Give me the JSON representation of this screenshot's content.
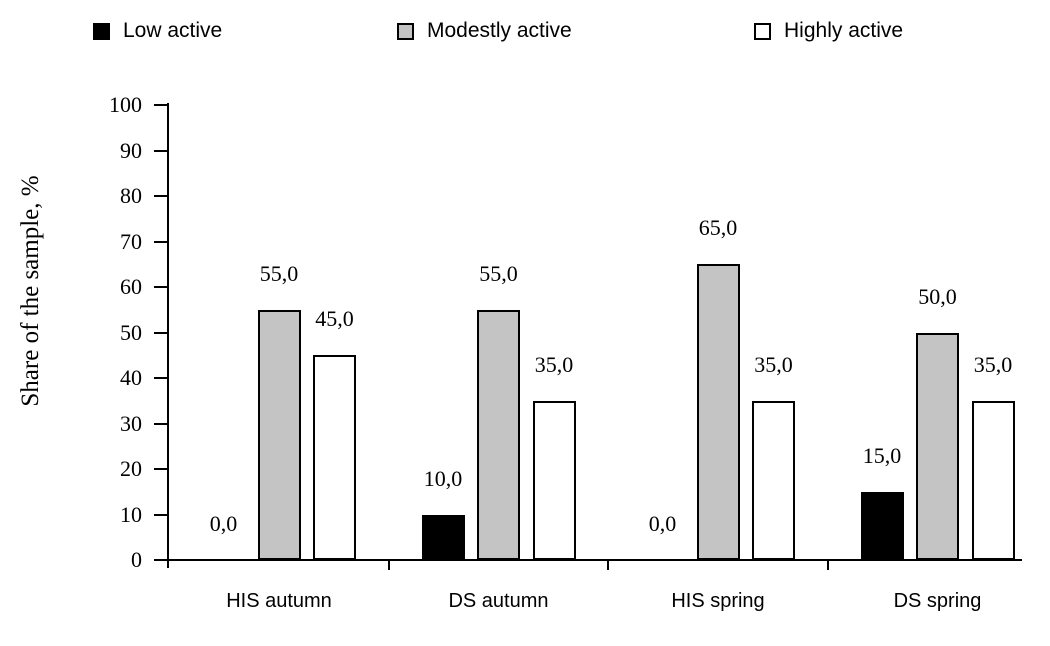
{
  "chart_data": {
    "type": "bar",
    "title": "",
    "xlabel": "",
    "ylabel": "Share of the sample, %",
    "ylim": [
      0,
      100
    ],
    "ytick_step": 10,
    "yticks": [
      0,
      10,
      20,
      30,
      40,
      50,
      60,
      70,
      80,
      90,
      100
    ],
    "grid": false,
    "legend_position": "top",
    "decimal_separator": ",",
    "categories": [
      "HIS autumn",
      "DS autumn",
      "HIS spring",
      "DS spring"
    ],
    "series": [
      {
        "name": "Low active",
        "color": "#000000",
        "values": [
          0,
          10,
          0,
          15
        ],
        "value_labels": [
          "0,0",
          "10,0",
          "0,0",
          "15,0"
        ]
      },
      {
        "name": "Modestly active",
        "color": "#c4c4c4",
        "values": [
          55,
          55,
          65,
          50
        ],
        "value_labels": [
          "55,0",
          "55,0",
          "65,0",
          "50,0"
        ]
      },
      {
        "name": "Highly active",
        "color": "#ffffff",
        "values": [
          45,
          35,
          35,
          35
        ],
        "value_labels": [
          "45,0",
          "35,0",
          "35,0",
          "35,0"
        ]
      }
    ]
  }
}
